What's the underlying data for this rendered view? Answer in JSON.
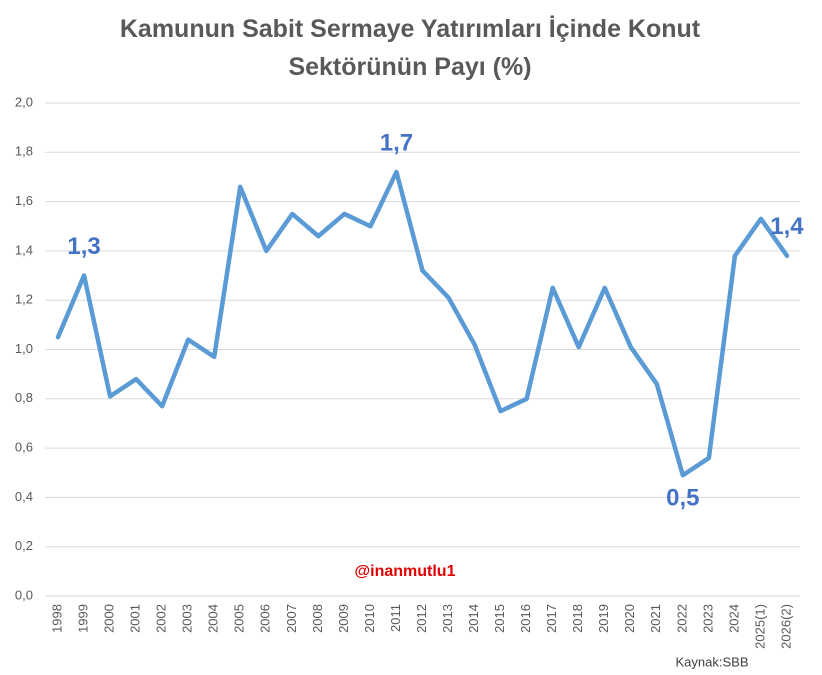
{
  "chart_data": {
    "type": "line",
    "title": "Kamunun Sabit Sermaye Yatırımları İçinde Konut Sektörünün Payı (%)",
    "categories": [
      "1998",
      "1999",
      "2000",
      "2001",
      "2002",
      "2003",
      "2004",
      "2005",
      "2006",
      "2007",
      "2008",
      "2009",
      "2010",
      "2011",
      "2012",
      "2013",
      "2014",
      "2015",
      "2016",
      "2017",
      "2018",
      "2019",
      "2020",
      "2021",
      "2022",
      "2023",
      "2024",
      "2025(1)",
      "2026(2)"
    ],
    "values": [
      1.05,
      1.3,
      0.81,
      0.88,
      0.77,
      1.04,
      0.97,
      1.66,
      1.4,
      1.55,
      1.46,
      1.55,
      1.5,
      1.72,
      1.32,
      1.21,
      1.02,
      0.75,
      0.8,
      1.25,
      1.01,
      1.25,
      1.01,
      0.86,
      0.49,
      0.56,
      1.38,
      1.53,
      1.38
    ],
    "value_labels": [
      null,
      "1,3",
      null,
      null,
      null,
      null,
      null,
      null,
      null,
      null,
      null,
      null,
      null,
      "1,7",
      null,
      null,
      null,
      null,
      null,
      null,
      null,
      null,
      null,
      null,
      "0,5",
      null,
      null,
      null,
      "1,4"
    ],
    "color": "#5b9bd5",
    "label_color": "#4472c4",
    "ylim": [
      0,
      2
    ],
    "yticks": [
      {
        "value": 0,
        "label": "0,0"
      },
      {
        "value": 0.2,
        "label": "0,2"
      },
      {
        "value": 0.4,
        "label": "0,4"
      },
      {
        "value": 0.6,
        "label": "0,6"
      },
      {
        "value": 0.8,
        "label": "0,8"
      },
      {
        "value": 1,
        "label": "1,0"
      },
      {
        "value": 1.2,
        "label": "1,2"
      },
      {
        "value": 1.4,
        "label": "1,4"
      },
      {
        "value": 1.6,
        "label": "1,6"
      },
      {
        "value": 1.8,
        "label": "1,8"
      },
      {
        "value": 2,
        "label": "2,0"
      }
    ],
    "grid": true,
    "annotation": "@inanmutlu1",
    "annotation_color": "#e00000",
    "source": "Kaynak:SBB"
  }
}
